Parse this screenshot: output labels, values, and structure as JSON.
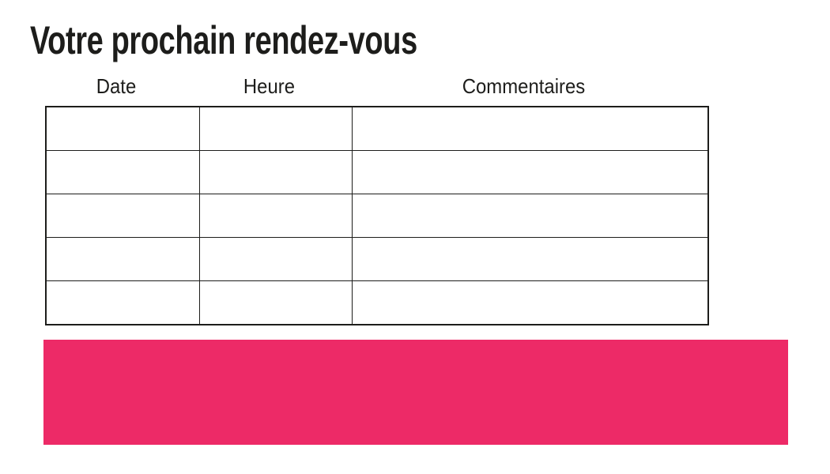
{
  "document": {
    "title": "Votre prochain rendez-vous"
  },
  "appointments_table": {
    "headers": [
      "Date",
      "Heure",
      "Commentaires"
    ],
    "rows": [
      [
        "",
        "",
        ""
      ],
      [
        "",
        "",
        ""
      ],
      [
        "",
        "",
        ""
      ],
      [
        "",
        "",
        ""
      ],
      [
        "",
        "",
        ""
      ]
    ]
  },
  "banner": {
    "color": "#ed2a67"
  },
  "colors": {
    "text": "#1d1d1b",
    "table_border": "#1d1d1b",
    "background": "#ffffff"
  }
}
